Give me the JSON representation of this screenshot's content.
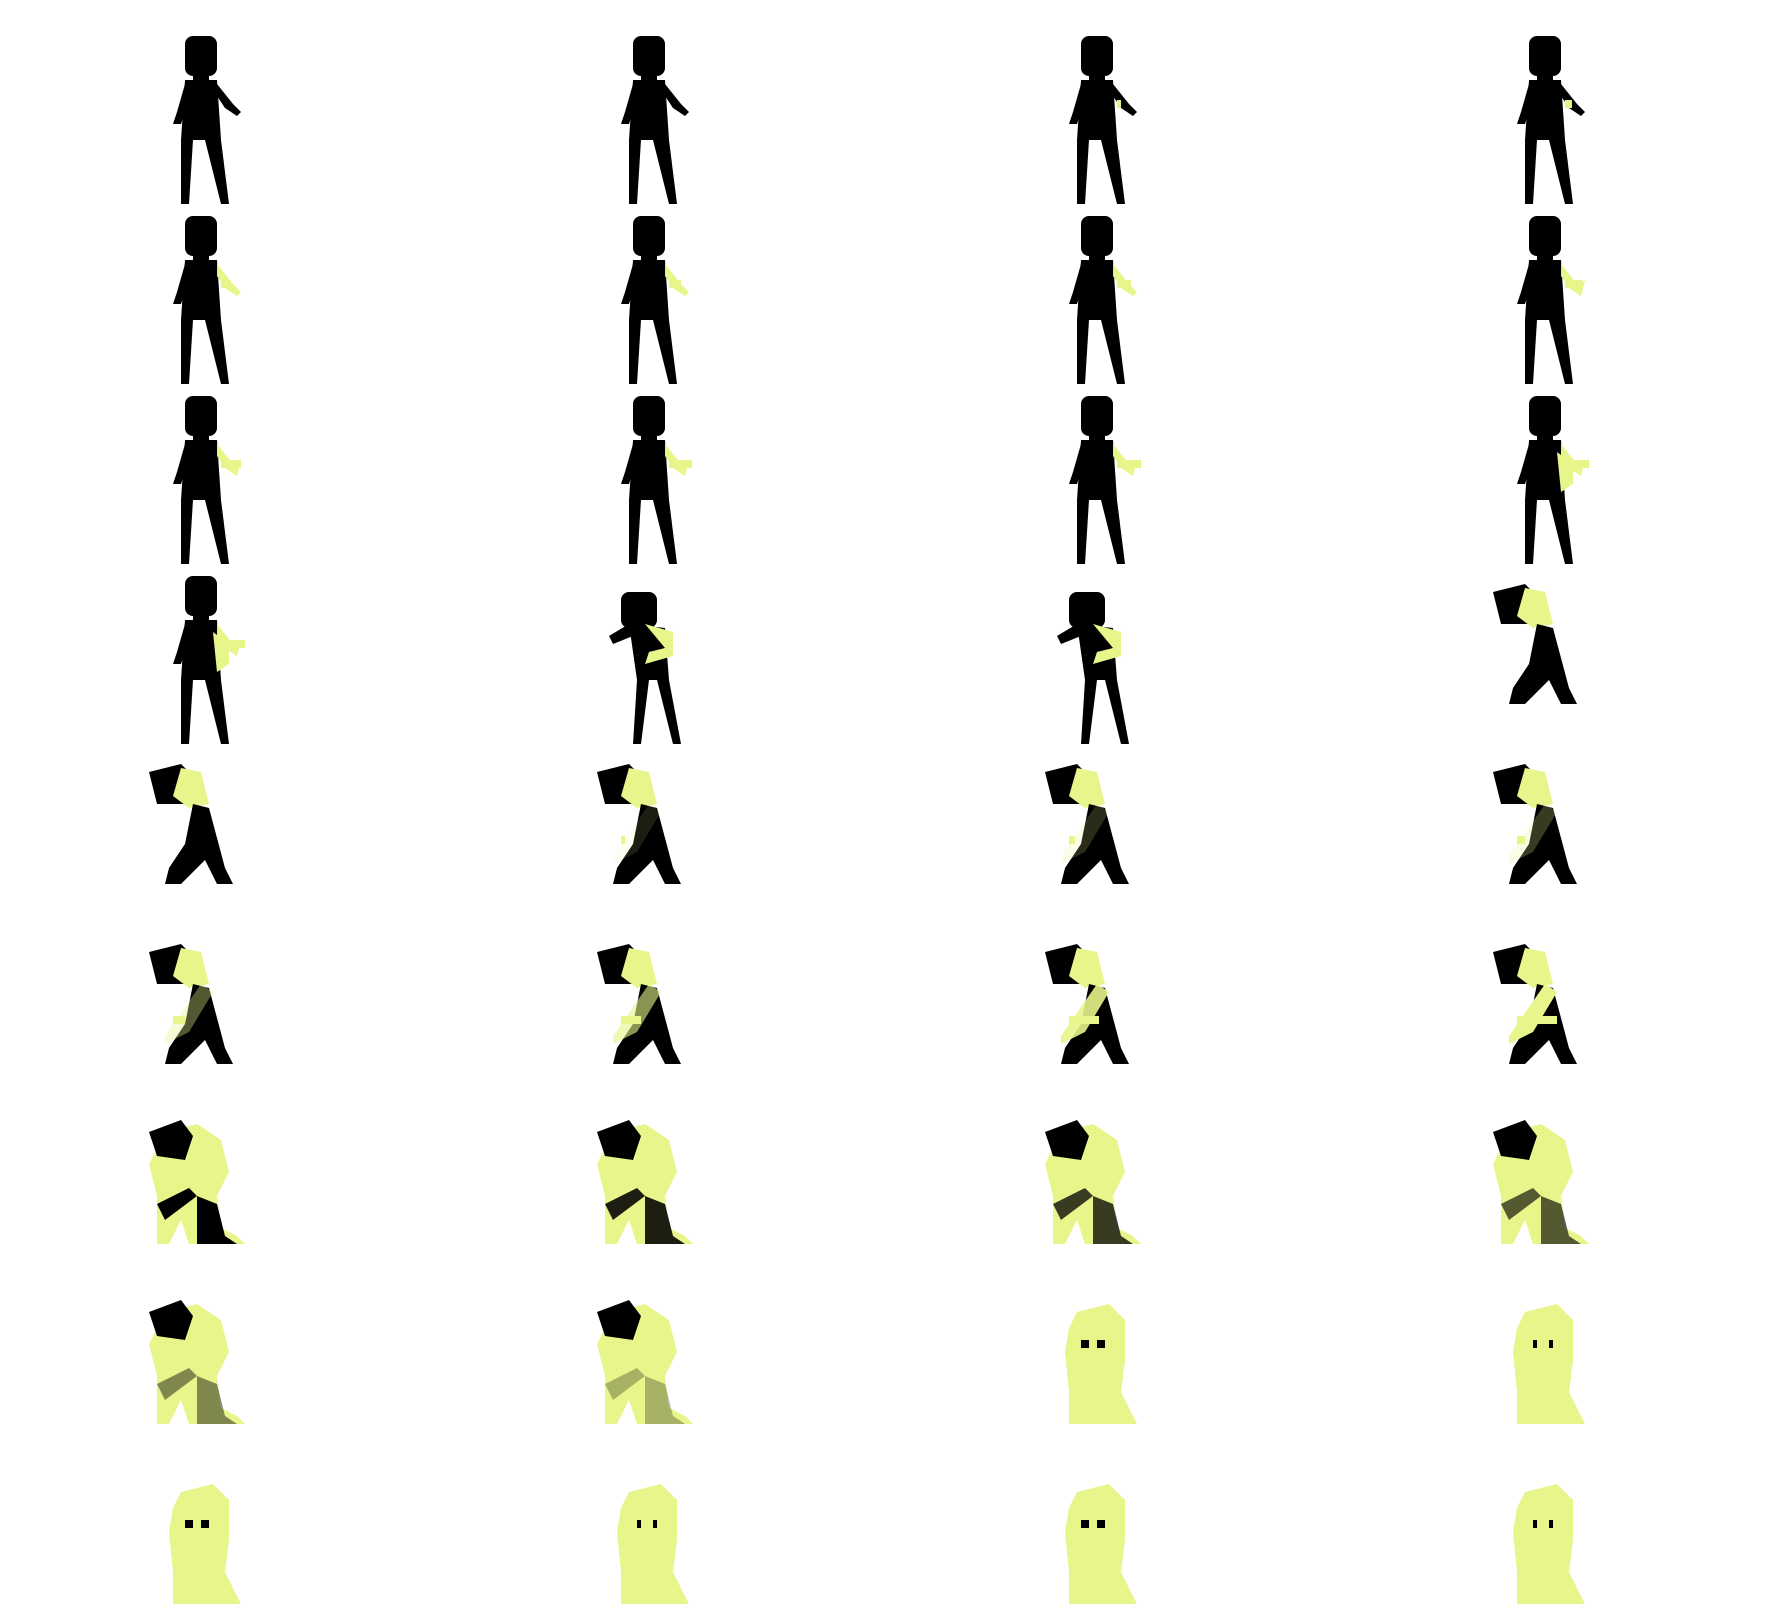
{
  "sprite_sheet": {
    "columns": 4,
    "rows": 9,
    "frame_count": 36,
    "colors": {
      "background": "#ffffff",
      "silhouette": "#000000",
      "slime": "#e8f58a"
    },
    "frames": [
      {
        "pose": "stand",
        "slime": 0.0
      },
      {
        "pose": "stand",
        "slime": 0.02
      },
      {
        "pose": "stand",
        "slime": 0.03
      },
      {
        "pose": "stand",
        "slime": 0.05
      },
      {
        "pose": "stand",
        "slime": 0.07
      },
      {
        "pose": "stand",
        "slime": 0.08
      },
      {
        "pose": "stand",
        "slime": 0.1
      },
      {
        "pose": "stand",
        "slime": 0.12
      },
      {
        "pose": "stand",
        "slime": 0.14
      },
      {
        "pose": "stand",
        "slime": 0.16
      },
      {
        "pose": "stand",
        "slime": 0.18
      },
      {
        "pose": "stand",
        "slime": 0.2
      },
      {
        "pose": "stand",
        "slime": 0.22
      },
      {
        "pose": "lean",
        "slime": 0.24
      },
      {
        "pose": "lean",
        "slime": 0.26
      },
      {
        "pose": "crouch",
        "slime": 0.28
      },
      {
        "pose": "crouch",
        "slime": 0.3
      },
      {
        "pose": "crouch",
        "slime": 0.32
      },
      {
        "pose": "crouch",
        "slime": 0.33
      },
      {
        "pose": "crouch",
        "slime": 0.34
      },
      {
        "pose": "crouch",
        "slime": 0.36
      },
      {
        "pose": "crouch",
        "slime": 0.4
      },
      {
        "pose": "crouch",
        "slime": 0.45
      },
      {
        "pose": "crouch",
        "slime": 0.5
      },
      {
        "pose": "kneel",
        "slime": 0.55
      },
      {
        "pose": "kneel",
        "slime": 0.6
      },
      {
        "pose": "kneel",
        "slime": 0.65
      },
      {
        "pose": "kneel",
        "slime": 0.7
      },
      {
        "pose": "kneel",
        "slime": 0.78
      },
      {
        "pose": "kneel",
        "slime": 0.85
      },
      {
        "pose": "blob",
        "slime": 0.92
      },
      {
        "pose": "blob",
        "slime": 1.0
      },
      {
        "pose": "blob",
        "slime": 1.0
      },
      {
        "pose": "blob",
        "slime": 1.0
      },
      {
        "pose": "blob",
        "slime": 1.0
      },
      {
        "pose": "blob",
        "slime": 1.0
      }
    ]
  }
}
